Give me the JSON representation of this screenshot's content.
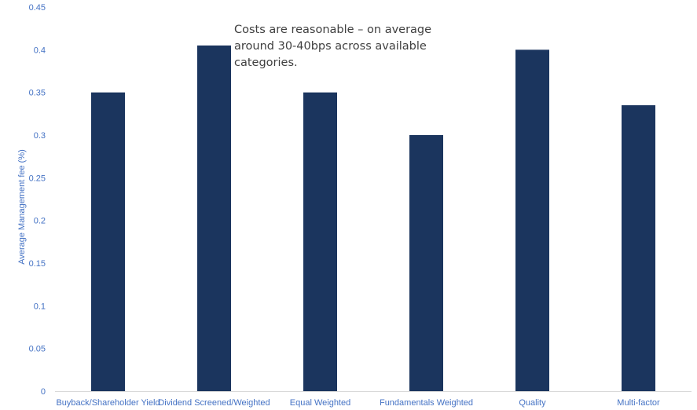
{
  "chart_data": {
    "type": "bar",
    "categories": [
      "Buyback/Shareholder Yield",
      "Dividend Screened/Weighted",
      "Equal Weighted",
      "Fundamentals Weighted",
      "Quality",
      "Multi-factor"
    ],
    "values": [
      0.35,
      0.405,
      0.35,
      0.3,
      0.4,
      0.335
    ],
    "title": "",
    "xlabel": "",
    "ylabel": "Average Management fee (%)",
    "ylim": [
      0,
      0.45
    ],
    "yticks": [
      "0",
      "0.05",
      "0.1",
      "0.15",
      "0.2",
      "0.25",
      "0.3",
      "0.35",
      "0.4",
      "0.45"
    ],
    "grid": false,
    "legend": "none",
    "annotation": "Costs are reasonable – on average\naround 30-40bps across available\ncategories.",
    "colors": {
      "bar": "#1b355e",
      "axis_text": "#4472c4",
      "axis_line": "#d9d9d9",
      "annotation_text": "#404040"
    }
  }
}
